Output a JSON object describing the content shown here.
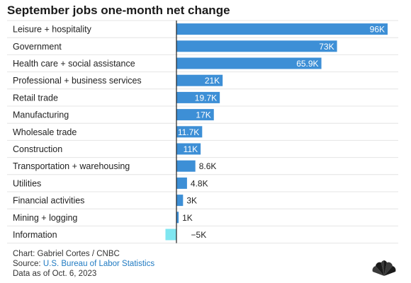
{
  "chart_data": {
    "type": "bar",
    "orientation": "horizontal",
    "title": "September jobs one-month net change",
    "categories": [
      "Leisure + hospitality",
      "Government",
      "Health care + social assistance",
      "Professional + business services",
      "Retail trade",
      "Manufacturing",
      "Wholesale trade",
      "Construction",
      "Transportation + warehousing",
      "Utilities",
      "Financial activities",
      "Mining + logging",
      "Information"
    ],
    "values": [
      96,
      73,
      65.9,
      21,
      19.7,
      17,
      11.7,
      11,
      8.6,
      4.8,
      3,
      1,
      -5
    ],
    "value_labels": [
      "96K",
      "73K",
      "65.9K",
      "21K",
      "19.7K",
      "17K",
      "11.7K",
      "11K",
      "8.6K",
      "4.8K",
      "3K",
      "1K",
      "−5K"
    ],
    "xlim": [
      -5,
      96
    ],
    "grid": false,
    "colors": {
      "positive": "#3d8fd6",
      "negative": "#7fe6f0",
      "label_on_bar": "#ffffff",
      "label_outside": "#222222"
    }
  },
  "footer": {
    "credit": "Chart: Gabriel Cortes / CNBC",
    "source_prefix": "Source: ",
    "source_link": "U.S. Bureau of Labor Statistics",
    "date": "Data as of Oct. 6, 2023"
  },
  "logo": {
    "icon": "cnbc-peacock-icon"
  }
}
